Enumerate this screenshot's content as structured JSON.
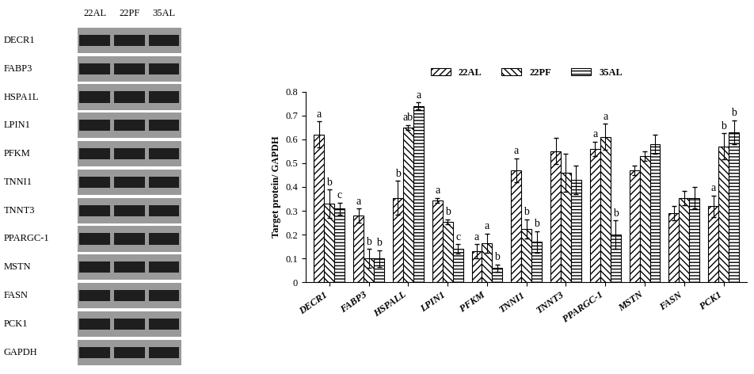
{
  "blot": {
    "lanes": [
      "22AL",
      "22PF",
      "35AL"
    ],
    "rows": [
      "DECR1",
      "FABP3",
      "HSPA1L",
      "LPIN1",
      "PFKM",
      "TNNI1",
      "TNNT3",
      "PPARGC-1",
      "MSTN",
      "FASN",
      "PCK1",
      "GAPDH"
    ]
  },
  "chart_data": {
    "type": "bar",
    "y_label": "Target protein/ GAPDH",
    "categories": [
      "DECR1",
      "FABP3",
      "HSPALL",
      "LPIN1",
      "PFKM",
      "TNNI1",
      "TNNT3",
      "PPARGC-1",
      "MSTN",
      "FASN",
      "PCK1"
    ],
    "series": [
      {
        "name": "22AL",
        "color": "#ffffff",
        "values": [
          0.62,
          0.28,
          0.355,
          0.345,
          0.13,
          0.47,
          0.55,
          0.56,
          0.47,
          0.29,
          0.32
        ],
        "errors": [
          0.055,
          0.03,
          0.07,
          0.01,
          0.03,
          0.05,
          0.055,
          0.03,
          0.02,
          0.03,
          0.045
        ],
        "significance": [
          "a",
          "a",
          "b",
          "a",
          "a",
          "a",
          null,
          "a",
          null,
          null,
          "a"
        ]
      },
      {
        "name": "22PF",
        "color": "#ffffff",
        "values": [
          0.33,
          0.1,
          0.65,
          0.255,
          0.165,
          0.225,
          0.46,
          0.61,
          0.53,
          0.355,
          0.57
        ],
        "errors": [
          0.06,
          0.04,
          0.01,
          0.01,
          0.04,
          0.04,
          0.08,
          0.055,
          0.02,
          0.03,
          0.055
        ],
        "significance": [
          "b",
          "b",
          "ab",
          "b",
          "a",
          "b",
          null,
          "a",
          null,
          null,
          "b"
        ]
      },
      {
        "name": "35AL",
        "color": "#ffffff",
        "values": [
          0.31,
          0.1,
          0.74,
          0.14,
          0.06,
          0.17,
          0.43,
          0.2,
          0.58,
          0.355,
          0.63
        ],
        "errors": [
          0.025,
          0.035,
          0.015,
          0.02,
          0.015,
          0.045,
          0.06,
          0.06,
          0.04,
          0.045,
          0.05
        ],
        "significance": [
          "c",
          "b",
          "a",
          "c",
          "b",
          "b",
          null,
          "b",
          null,
          null,
          "b"
        ]
      }
    ],
    "ylim": [
      0,
      0.8
    ],
    "yticks": [
      0,
      0.1,
      0.2,
      0.3,
      0.4,
      0.5,
      0.6,
      0.7,
      0.8
    ],
    "legend": "upper center"
  }
}
